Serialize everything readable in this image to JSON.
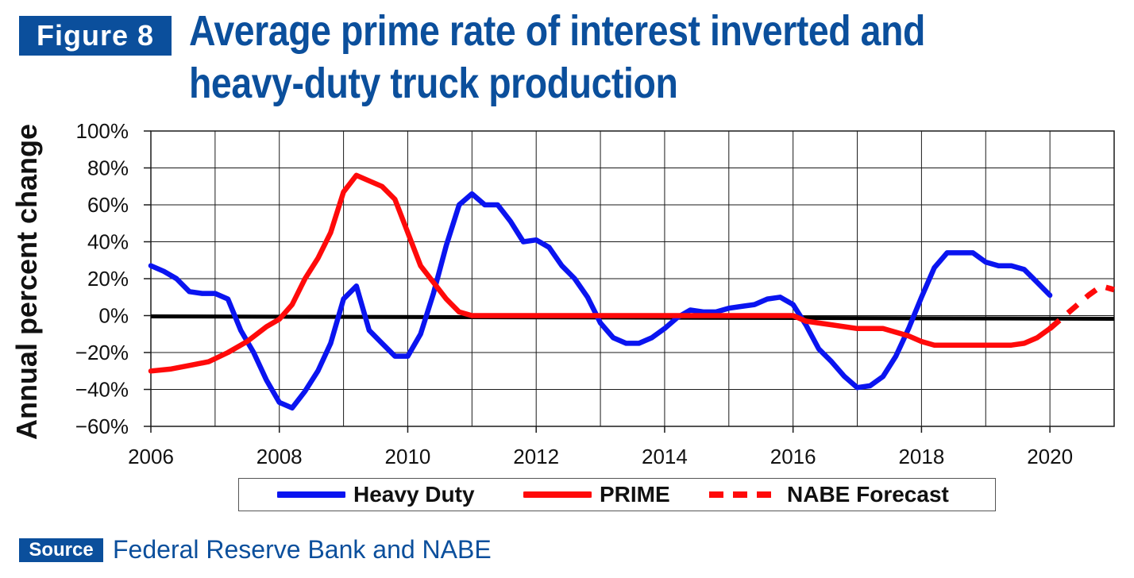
{
  "figure": {
    "badge": "Figure 8"
  },
  "source": {
    "badge": "Source",
    "text": "Federal Reserve Bank and NABE"
  },
  "chart_data": {
    "type": "line",
    "title_line1": "Average prime rate of interest inverted and",
    "title_line2": "heavy-duty truck production",
    "ylabel": "Annual percent change",
    "xlabel": "",
    "xlim": [
      2006,
      2021
    ],
    "ylim": [
      -60,
      100
    ],
    "x_ticks": [
      2006,
      2008,
      2010,
      2012,
      2014,
      2016,
      2018,
      2020
    ],
    "y_ticks": [
      100,
      80,
      60,
      40,
      20,
      0,
      -20,
      -40,
      -60
    ],
    "x_tick_labels": [
      "2006",
      "2008",
      "2010",
      "2012",
      "2014",
      "2016",
      "2018",
      "2020"
    ],
    "y_tick_labels": [
      "100%",
      "80%",
      "60%",
      "40%",
      "20%",
      "0%",
      "−20%",
      "−40%",
      "−60%"
    ],
    "grid": true,
    "legend_position": "bottom",
    "zero_line": true,
    "series": [
      {
        "name": "Heavy Duty",
        "color": "#0a14f0",
        "style": "solid",
        "points": [
          [
            2006.0,
            27
          ],
          [
            2006.2,
            24
          ],
          [
            2006.4,
            20
          ],
          [
            2006.6,
            13
          ],
          [
            2006.8,
            12
          ],
          [
            2007.0,
            12
          ],
          [
            2007.2,
            9
          ],
          [
            2007.4,
            -8
          ],
          [
            2007.6,
            -20
          ],
          [
            2007.8,
            -35
          ],
          [
            2008.0,
            -47
          ],
          [
            2008.2,
            -50
          ],
          [
            2008.4,
            -41
          ],
          [
            2008.6,
            -30
          ],
          [
            2008.8,
            -15
          ],
          [
            2009.0,
            9
          ],
          [
            2009.2,
            16
          ],
          [
            2009.4,
            -8
          ],
          [
            2009.6,
            -15
          ],
          [
            2009.8,
            -22
          ],
          [
            2010.0,
            -22
          ],
          [
            2010.2,
            -10
          ],
          [
            2010.4,
            12
          ],
          [
            2010.6,
            38
          ],
          [
            2010.8,
            60
          ],
          [
            2011.0,
            66
          ],
          [
            2011.2,
            60
          ],
          [
            2011.4,
            60
          ],
          [
            2011.6,
            51
          ],
          [
            2011.8,
            40
          ],
          [
            2012.0,
            41
          ],
          [
            2012.2,
            37
          ],
          [
            2012.4,
            27
          ],
          [
            2012.6,
            20
          ],
          [
            2012.8,
            10
          ],
          [
            2013.0,
            -4
          ],
          [
            2013.2,
            -12
          ],
          [
            2013.4,
            -15
          ],
          [
            2013.6,
            -15
          ],
          [
            2013.8,
            -12
          ],
          [
            2014.0,
            -7
          ],
          [
            2014.2,
            -1
          ],
          [
            2014.4,
            3
          ],
          [
            2014.6,
            2
          ],
          [
            2014.8,
            2
          ],
          [
            2015.0,
            4
          ],
          [
            2015.2,
            5
          ],
          [
            2015.4,
            6
          ],
          [
            2015.6,
            9
          ],
          [
            2015.8,
            10
          ],
          [
            2016.0,
            6
          ],
          [
            2016.2,
            -5
          ],
          [
            2016.4,
            -18
          ],
          [
            2016.6,
            -25
          ],
          [
            2016.8,
            -33
          ],
          [
            2017.0,
            -39
          ],
          [
            2017.2,
            -38
          ],
          [
            2017.4,
            -33
          ],
          [
            2017.6,
            -22
          ],
          [
            2017.8,
            -7
          ],
          [
            2018.0,
            10
          ],
          [
            2018.2,
            26
          ],
          [
            2018.4,
            34
          ],
          [
            2018.6,
            34
          ],
          [
            2018.8,
            34
          ],
          [
            2019.0,
            29
          ],
          [
            2019.2,
            27
          ],
          [
            2019.4,
            27
          ],
          [
            2019.6,
            25
          ],
          [
            2019.8,
            18
          ],
          [
            2020.0,
            11
          ]
        ]
      },
      {
        "name": "PRIME",
        "color": "#ff0a0a",
        "style": "solid",
        "points": [
          [
            2006.0,
            -30
          ],
          [
            2006.3,
            -29
          ],
          [
            2006.6,
            -27
          ],
          [
            2006.9,
            -25
          ],
          [
            2007.2,
            -20
          ],
          [
            2007.5,
            -14
          ],
          [
            2007.8,
            -6
          ],
          [
            2008.0,
            -2
          ],
          [
            2008.2,
            6
          ],
          [
            2008.4,
            20
          ],
          [
            2008.6,
            31
          ],
          [
            2008.8,
            45
          ],
          [
            2009.0,
            67
          ],
          [
            2009.2,
            76
          ],
          [
            2009.4,
            73
          ],
          [
            2009.6,
            70
          ],
          [
            2009.8,
            63
          ],
          [
            2010.0,
            45
          ],
          [
            2010.2,
            27
          ],
          [
            2010.4,
            18
          ],
          [
            2010.6,
            9
          ],
          [
            2010.8,
            2
          ],
          [
            2011.0,
            0
          ],
          [
            2012.0,
            0
          ],
          [
            2013.0,
            0
          ],
          [
            2014.0,
            0
          ],
          [
            2015.0,
            0
          ],
          [
            2016.0,
            0
          ],
          [
            2016.2,
            -3
          ],
          [
            2016.6,
            -5
          ],
          [
            2017.0,
            -7
          ],
          [
            2017.4,
            -7
          ],
          [
            2017.8,
            -11
          ],
          [
            2018.0,
            -14
          ],
          [
            2018.2,
            -16
          ],
          [
            2018.6,
            -16
          ],
          [
            2019.0,
            -16
          ],
          [
            2019.4,
            -16
          ],
          [
            2019.6,
            -15
          ],
          [
            2019.8,
            -12
          ],
          [
            2020.0,
            -7
          ]
        ]
      },
      {
        "name": "NABE Forecast",
        "color": "#ff0a0a",
        "style": "dashed",
        "points": [
          [
            2020.0,
            -7
          ],
          [
            2020.2,
            -1
          ],
          [
            2020.4,
            5
          ],
          [
            2020.6,
            11
          ],
          [
            2020.8,
            16
          ],
          [
            2021.0,
            14
          ]
        ]
      }
    ]
  }
}
